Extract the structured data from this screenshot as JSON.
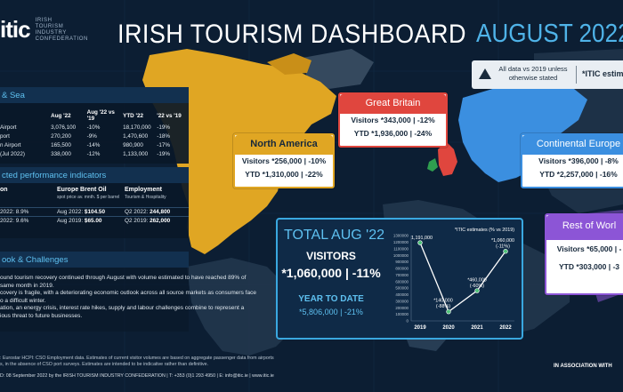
{
  "header": {
    "logo": "itic",
    "org_name": "IRISH\nTOURISM\nINDUSTRY\nCONFEDERATION",
    "title": "IRISH TOURISM DASHBOARD",
    "month": "AUGUST 2022"
  },
  "note": {
    "text": "All data vs 2019 unless otherwise stated",
    "itic_label": "*ITIC estimates"
  },
  "colors": {
    "background": "#0c1e33",
    "accent": "#4fb3e8",
    "great_britain": "#e0463e",
    "north_america": "#e0a623",
    "continental_europe": "#3b8fe0",
    "rest_of_world": "#8c55d6"
  },
  "air_sea": {
    "heading": "& Sea",
    "columns": [
      "",
      "Aug '22",
      "Aug '22 vs '19",
      "YTD '22",
      "'22 vs '19"
    ],
    "rows": [
      [
        "Airport",
        "3,076,100",
        "-10%",
        "18,170,000",
        "-19%"
      ],
      [
        "port",
        "270,200",
        "-9%",
        "1,470,600",
        "-18%"
      ],
      [
        "n Airport",
        "165,500",
        "-14%",
        "980,900",
        "-17%"
      ],
      [
        "(Jul 2022)",
        "338,000",
        "-12%",
        "1,133,000",
        "-19%"
      ]
    ]
  },
  "kpi": {
    "heading": "cted performance indicators",
    "columns": [
      {
        "head": "on",
        "sub": "",
        "rows": [
          "2022: 8.9%",
          "2022: 9.6%"
        ]
      },
      {
        "head": "Europe Brent Oil",
        "sub": "spot price av. mnth. $ per barrel",
        "rows_label": [
          "Aug 2022:",
          "Aug 2019:"
        ],
        "rows": [
          "$104.50",
          "$65.00"
        ]
      },
      {
        "head": "Employment",
        "sub": "Tourism & Hospitality",
        "rows_label": [
          "Q2 2022:",
          "Q2 2019:"
        ],
        "rows": [
          "244,800",
          "262,000"
        ]
      }
    ]
  },
  "outlook": {
    "heading": "ook & Challenges",
    "lines": [
      "ound tourism recovery continued through August with volume estimated to have reached 89% of",
      "same month in 2019.",
      "covery is fragile, with a deteriorating economic outlook across all source markets as consumers face",
      "o a difficult winter.",
      "ation, an energy crisis, interest rate hikes, supply and labour challenges combine to represent a",
      "ious threat to future businesses."
    ]
  },
  "regions": {
    "great_britain": {
      "name": "Great Britain",
      "visitors": "Visitors *343,000 | -12%",
      "ytd": "YTD *1,936,000 | -24%"
    },
    "north_america": {
      "name": "North America",
      "visitors": "Visitors *256,000 | -10%",
      "ytd": "YTD *1,310,000 | -22%"
    },
    "continental_europe": {
      "name": "Continental Europe",
      "visitors": "Visitors *396,000 | -8%",
      "ytd": "YTD *2,257,000 | -16%"
    },
    "rest_of_world": {
      "name": "Rest of Worl",
      "visitors": "Visitors *65,000 | -",
      "ytd": "YTD *303,000 | -3"
    }
  },
  "total": {
    "title": "TOTAL AUG '22",
    "visitors_label": "VISITORS",
    "visitors_value": "*1,060,000 | -11%",
    "ytd_label": "YEAR TO DATE",
    "ytd_value": "*5,806,000 | -21%"
  },
  "chart_data": {
    "type": "line",
    "title": "",
    "legend_note": "*ITIC estimates (% vs 2019)",
    "categories": [
      "2019",
      "2020",
      "2021",
      "2022"
    ],
    "values": [
      1191000,
      140000,
      460000,
      1060000
    ],
    "data_labels": [
      [
        "1,191,000"
      ],
      [
        "*140,000",
        "(-88%)"
      ],
      [
        "*460,000",
        "(-60%)"
      ],
      [
        "*1,060,000",
        "(-11%)"
      ]
    ],
    "y_ticks": [
      "1300000",
      "1200000",
      "1100000",
      "1000000",
      "900000",
      "800000",
      "700000",
      "600000",
      "500000",
      "400000",
      "300000",
      "200000",
      "100000",
      "0"
    ],
    "ylim": [
      0,
      1300000
    ],
    "line_color": "#ffffff",
    "marker_color": "#4fc37a",
    "grid": false
  },
  "footer": {
    "line1": ": Eurostar HCPI: CSO Employment data. Estimates of current visitor volumes are based on aggregate passenger data from airports",
    "line2": "s, in the absence of CSO port surveys.  Estimates are intended to be indicative rather than definitive.",
    "bar": "D: 08 September 2022 by the IRISH TOURISM INDUSTRY CONFEDERATION  |  T: +353 (0)1 293 4950  |  E: info@itic.ie  |  www.itic.ie",
    "assoc": "IN ASSOCIATION WITH"
  }
}
